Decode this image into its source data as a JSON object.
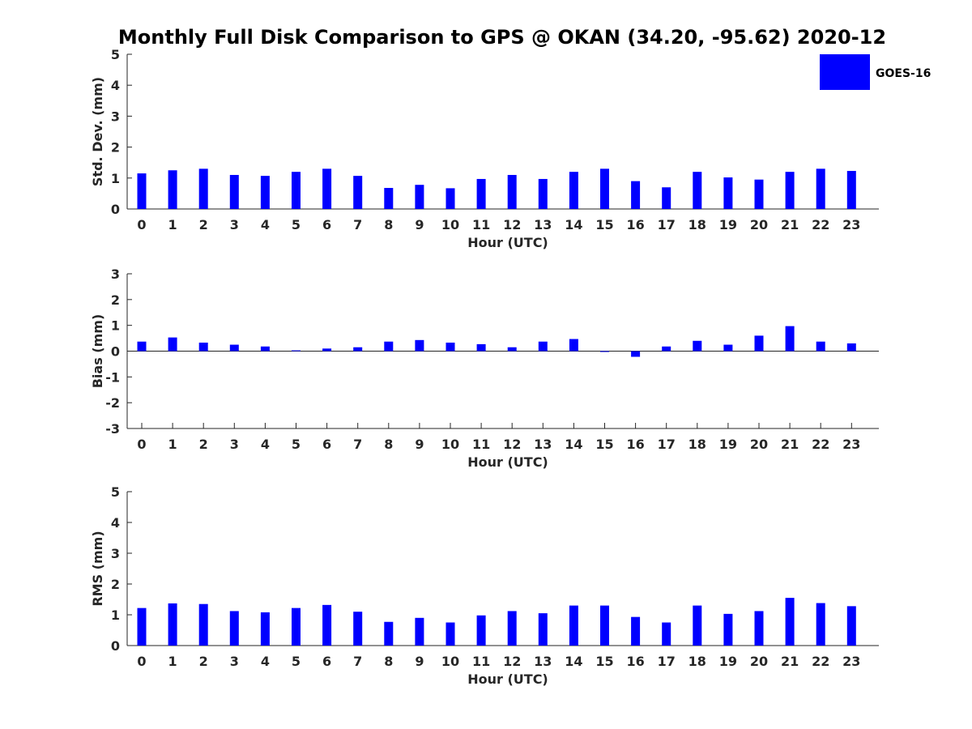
{
  "chart_data": {
    "title": "Monthly Full Disk Comparison to GPS @ OKAN (34.20, -95.62) 2020-12",
    "legend": {
      "label": "GOES-16",
      "color": "#0000ff",
      "placement": "top-right"
    },
    "panels": [
      {
        "id": "stddev",
        "type": "bar",
        "ylabel": "Std. Dev. (mm)",
        "xlabel": "Hour (UTC)",
        "ylim": [
          0,
          5
        ],
        "yticks": [
          0,
          1,
          2,
          3,
          4,
          5
        ],
        "categories": [
          "0",
          "1",
          "2",
          "3",
          "4",
          "5",
          "6",
          "7",
          "8",
          "9",
          "10",
          "11",
          "12",
          "13",
          "14",
          "15",
          "16",
          "17",
          "18",
          "19",
          "20",
          "21",
          "22",
          "23"
        ],
        "series": [
          {
            "name": "GOES-16",
            "values": [
              1.15,
              1.25,
              1.3,
              1.1,
              1.07,
              1.2,
              1.3,
              1.07,
              0.68,
              0.78,
              0.67,
              0.97,
              1.1,
              0.97,
              1.2,
              1.3,
              0.9,
              0.7,
              1.2,
              1.02,
              0.95,
              1.2,
              1.3,
              1.23
            ]
          }
        ]
      },
      {
        "id": "bias",
        "type": "bar",
        "ylabel": "Bias (mm)",
        "xlabel": "Hour (UTC)",
        "ylim": [
          -3,
          3
        ],
        "yticks": [
          -3,
          -2,
          -1,
          0,
          1,
          2,
          3
        ],
        "zero_line": true,
        "categories": [
          "0",
          "1",
          "2",
          "3",
          "4",
          "5",
          "6",
          "7",
          "8",
          "9",
          "10",
          "11",
          "12",
          "13",
          "14",
          "15",
          "16",
          "17",
          "18",
          "19",
          "20",
          "21",
          "22",
          "23"
        ],
        "series": [
          {
            "name": "GOES-16",
            "values": [
              0.37,
              0.53,
              0.33,
              0.25,
              0.18,
              0.03,
              0.1,
              0.15,
              0.37,
              0.43,
              0.33,
              0.27,
              0.15,
              0.37,
              0.47,
              0.0,
              -0.22,
              0.18,
              0.4,
              0.25,
              0.6,
              0.97,
              0.37,
              0.3
            ]
          }
        ]
      },
      {
        "id": "rms",
        "type": "bar",
        "ylabel": "RMS (mm)",
        "xlabel": "Hour (UTC)",
        "ylim": [
          0,
          5
        ],
        "yticks": [
          0,
          1,
          2,
          3,
          4,
          5
        ],
        "categories": [
          "0",
          "1",
          "2",
          "3",
          "4",
          "5",
          "6",
          "7",
          "8",
          "9",
          "10",
          "11",
          "12",
          "13",
          "14",
          "15",
          "16",
          "17",
          "18",
          "19",
          "20",
          "21",
          "22",
          "23"
        ],
        "series": [
          {
            "name": "GOES-16",
            "values": [
              1.22,
              1.37,
              1.35,
              1.12,
              1.08,
              1.22,
              1.32,
              1.1,
              0.77,
              0.9,
              0.75,
              0.98,
              1.12,
              1.05,
              1.3,
              1.3,
              0.93,
              0.75,
              1.3,
              1.03,
              1.12,
              1.55,
              1.38,
              1.28
            ]
          }
        ]
      }
    ]
  }
}
